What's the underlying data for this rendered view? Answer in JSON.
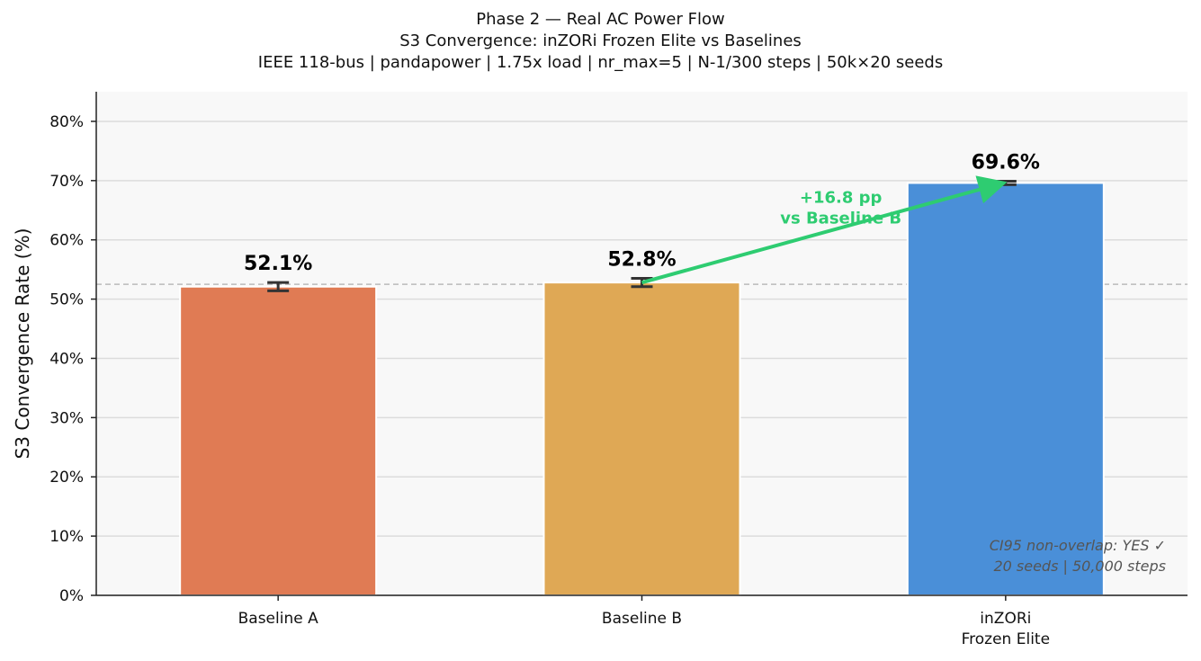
{
  "chart_data": {
    "type": "bar",
    "title_lines": [
      "Phase 2 — Real AC Power Flow",
      "S3 Convergence: inZORi Frozen Elite vs Baselines",
      "IEEE 118-bus | pandapower | 1.75x load | nr_max=5 | N-1/300 steps | 50k×20 seeds"
    ],
    "ylabel": "S3 Convergence Rate (%)",
    "ylim": [
      0,
      85
    ],
    "yticks": [
      0,
      10,
      20,
      30,
      40,
      50,
      60,
      70,
      80
    ],
    "ytick_labels": [
      "0%",
      "10%",
      "20%",
      "30%",
      "40%",
      "50%",
      "60%",
      "70%",
      "80%"
    ],
    "categories": [
      {
        "lines": [
          "Baseline A"
        ]
      },
      {
        "lines": [
          "Baseline B"
        ]
      },
      {
        "lines": [
          "inZORi",
          "Frozen Elite"
        ]
      }
    ],
    "values": [
      52.1,
      52.8,
      69.6
    ],
    "value_labels": [
      "52.1%",
      "52.8%",
      "69.6%"
    ],
    "error": [
      0.7,
      0.7,
      0.3
    ],
    "colors": [
      "#e07b54",
      "#dfa855",
      "#4a8fd8"
    ],
    "reference_line": 52.5,
    "annotation": {
      "lines": [
        "+16.8 pp",
        "vs Baseline B"
      ],
      "color": "#2ecc71"
    },
    "note_lines": [
      "CI95 non-overlap: YES ✓",
      "20 seeds | 50,000 steps"
    ],
    "grid": true
  }
}
